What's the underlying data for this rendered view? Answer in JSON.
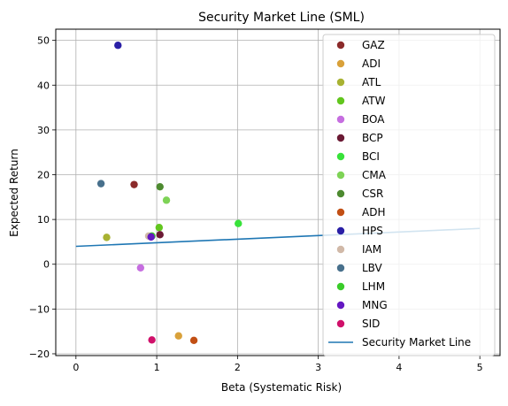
{
  "chart_data": {
    "type": "scatter",
    "title": "Security Market Line (SML)",
    "xlabel": "Beta (Systematic Risk)",
    "ylabel": "Expected Return",
    "xlim": [
      -0.25,
      5.25
    ],
    "ylim": [
      -20.4,
      52.5
    ],
    "xticks": [
      0,
      1,
      2,
      3,
      4,
      5
    ],
    "yticks": [
      -20,
      -10,
      0,
      10,
      20,
      30,
      40,
      50
    ],
    "grid": true,
    "legend_position": "right",
    "series": [
      {
        "name": "GAZ",
        "color": "#8b2a2a",
        "x": 0.72,
        "y": 17.8
      },
      {
        "name": "ADI",
        "color": "#d9a13a",
        "x": 1.27,
        "y": -16.0
      },
      {
        "name": "ATL",
        "color": "#a8b232",
        "x": 0.38,
        "y": 6.0
      },
      {
        "name": "ATW",
        "color": "#62c61e",
        "x": 1.03,
        "y": 8.2
      },
      {
        "name": "BOA",
        "color": "#c66ee0",
        "x": 0.8,
        "y": -0.8
      },
      {
        "name": "BCP",
        "color": "#6b1a34",
        "x": 1.04,
        "y": 6.6
      },
      {
        "name": "BCI",
        "color": "#38e23a",
        "x": 2.01,
        "y": 9.1
      },
      {
        "name": "CMA",
        "color": "#7ed356",
        "x": 1.12,
        "y": 14.3
      },
      {
        "name": "CSR",
        "color": "#4d8a30",
        "x": 1.04,
        "y": 17.3
      },
      {
        "name": "ADH",
        "color": "#c24f14",
        "x": 1.46,
        "y": -17.0
      },
      {
        "name": "HPS",
        "color": "#2a1fa6",
        "x": 0.52,
        "y": 48.9
      },
      {
        "name": "IAM",
        "color": "#d1b9a8",
        "x": 0.9,
        "y": 6.3
      },
      {
        "name": "LBV",
        "color": "#48708c",
        "x": 0.31,
        "y": 18.0
      },
      {
        "name": "LHM",
        "color": "#3acc2a",
        "x": 0.94,
        "y": 6.3
      },
      {
        "name": "MNG",
        "color": "#6417c2",
        "x": 0.93,
        "y": 6.1
      },
      {
        "name": "SID",
        "color": "#d0106a",
        "x": 0.94,
        "y": -16.9
      }
    ],
    "line": {
      "name": "Security Market Line",
      "color": "#1f77b4",
      "x": [
        0,
        5
      ],
      "y": [
        4.0,
        8.0
      ]
    }
  }
}
